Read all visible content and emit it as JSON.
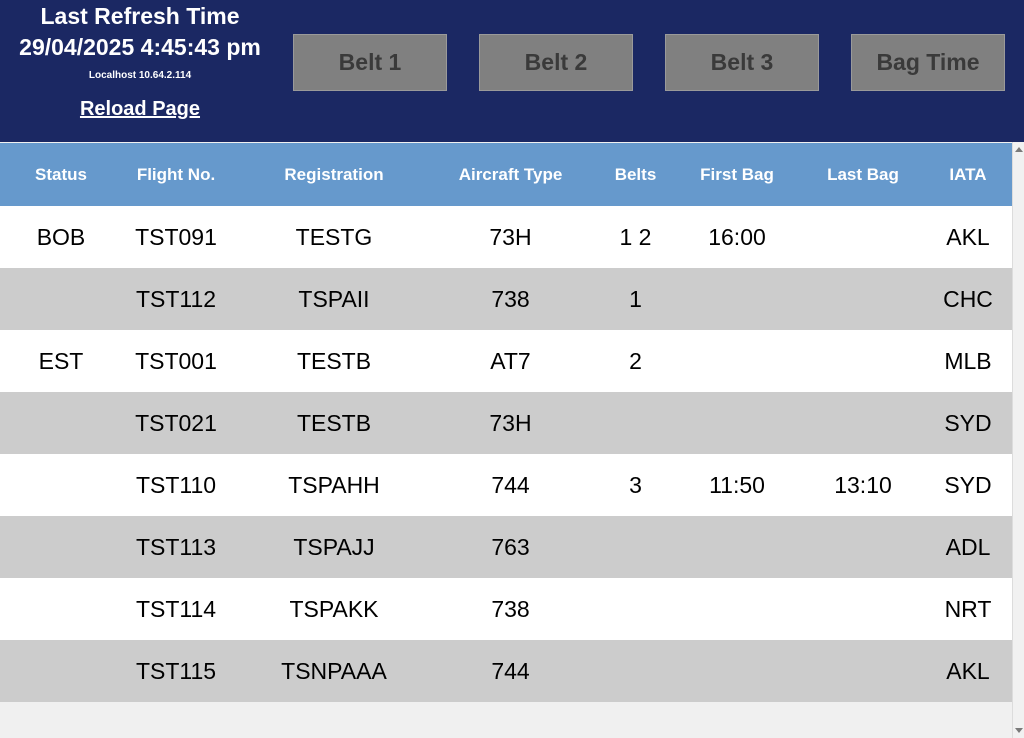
{
  "header": {
    "title": "Last Refresh Time",
    "timestamp": "29/04/2025 4:45:43 pm",
    "host": "Localhost 10.64.2.114",
    "reload_label": "Reload Page",
    "background_color": "#1b2863"
  },
  "buttons": [
    {
      "label": "Belt 1"
    },
    {
      "label": "Belt 2"
    },
    {
      "label": "Belt 3"
    },
    {
      "label": "Bag Time"
    }
  ],
  "table": {
    "header_color": "#6699cc",
    "columns": [
      "Status",
      "Flight No.",
      "Registration",
      "Aircraft Type",
      "Belts",
      "First Bag",
      "Last Bag",
      "IATA"
    ],
    "rows": [
      {
        "status": "BOB",
        "flight": "TST091",
        "registration": "TESTG",
        "aircraft": "73H",
        "belts": "1 2",
        "first_bag": "16:00",
        "last_bag": "",
        "iata": "AKL"
      },
      {
        "status": "",
        "flight": "TST112",
        "registration": "TSPAII",
        "aircraft": "738",
        "belts": "1",
        "first_bag": "",
        "last_bag": "",
        "iata": "CHC"
      },
      {
        "status": "EST",
        "flight": "TST001",
        "registration": "TESTB",
        "aircraft": "AT7",
        "belts": "2",
        "first_bag": "",
        "last_bag": "",
        "iata": "MLB"
      },
      {
        "status": "",
        "flight": "TST021",
        "registration": "TESTB",
        "aircraft": "73H",
        "belts": "",
        "first_bag": "",
        "last_bag": "",
        "iata": "SYD"
      },
      {
        "status": "",
        "flight": "TST110",
        "registration": "TSPAHH",
        "aircraft": "744",
        "belts": "3",
        "first_bag": "11:50",
        "last_bag": "13:10",
        "iata": "SYD"
      },
      {
        "status": "",
        "flight": "TST113",
        "registration": "TSPAJJ",
        "aircraft": "763",
        "belts": "",
        "first_bag": "",
        "last_bag": "",
        "iata": "ADL"
      },
      {
        "status": "",
        "flight": "TST114",
        "registration": "TSPAKK",
        "aircraft": "738",
        "belts": "",
        "first_bag": "",
        "last_bag": "",
        "iata": "NRT"
      },
      {
        "status": "",
        "flight": "TST115",
        "registration": "TSNPAAA",
        "aircraft": "744",
        "belts": "",
        "first_bag": "",
        "last_bag": "",
        "iata": "AKL"
      }
    ]
  }
}
